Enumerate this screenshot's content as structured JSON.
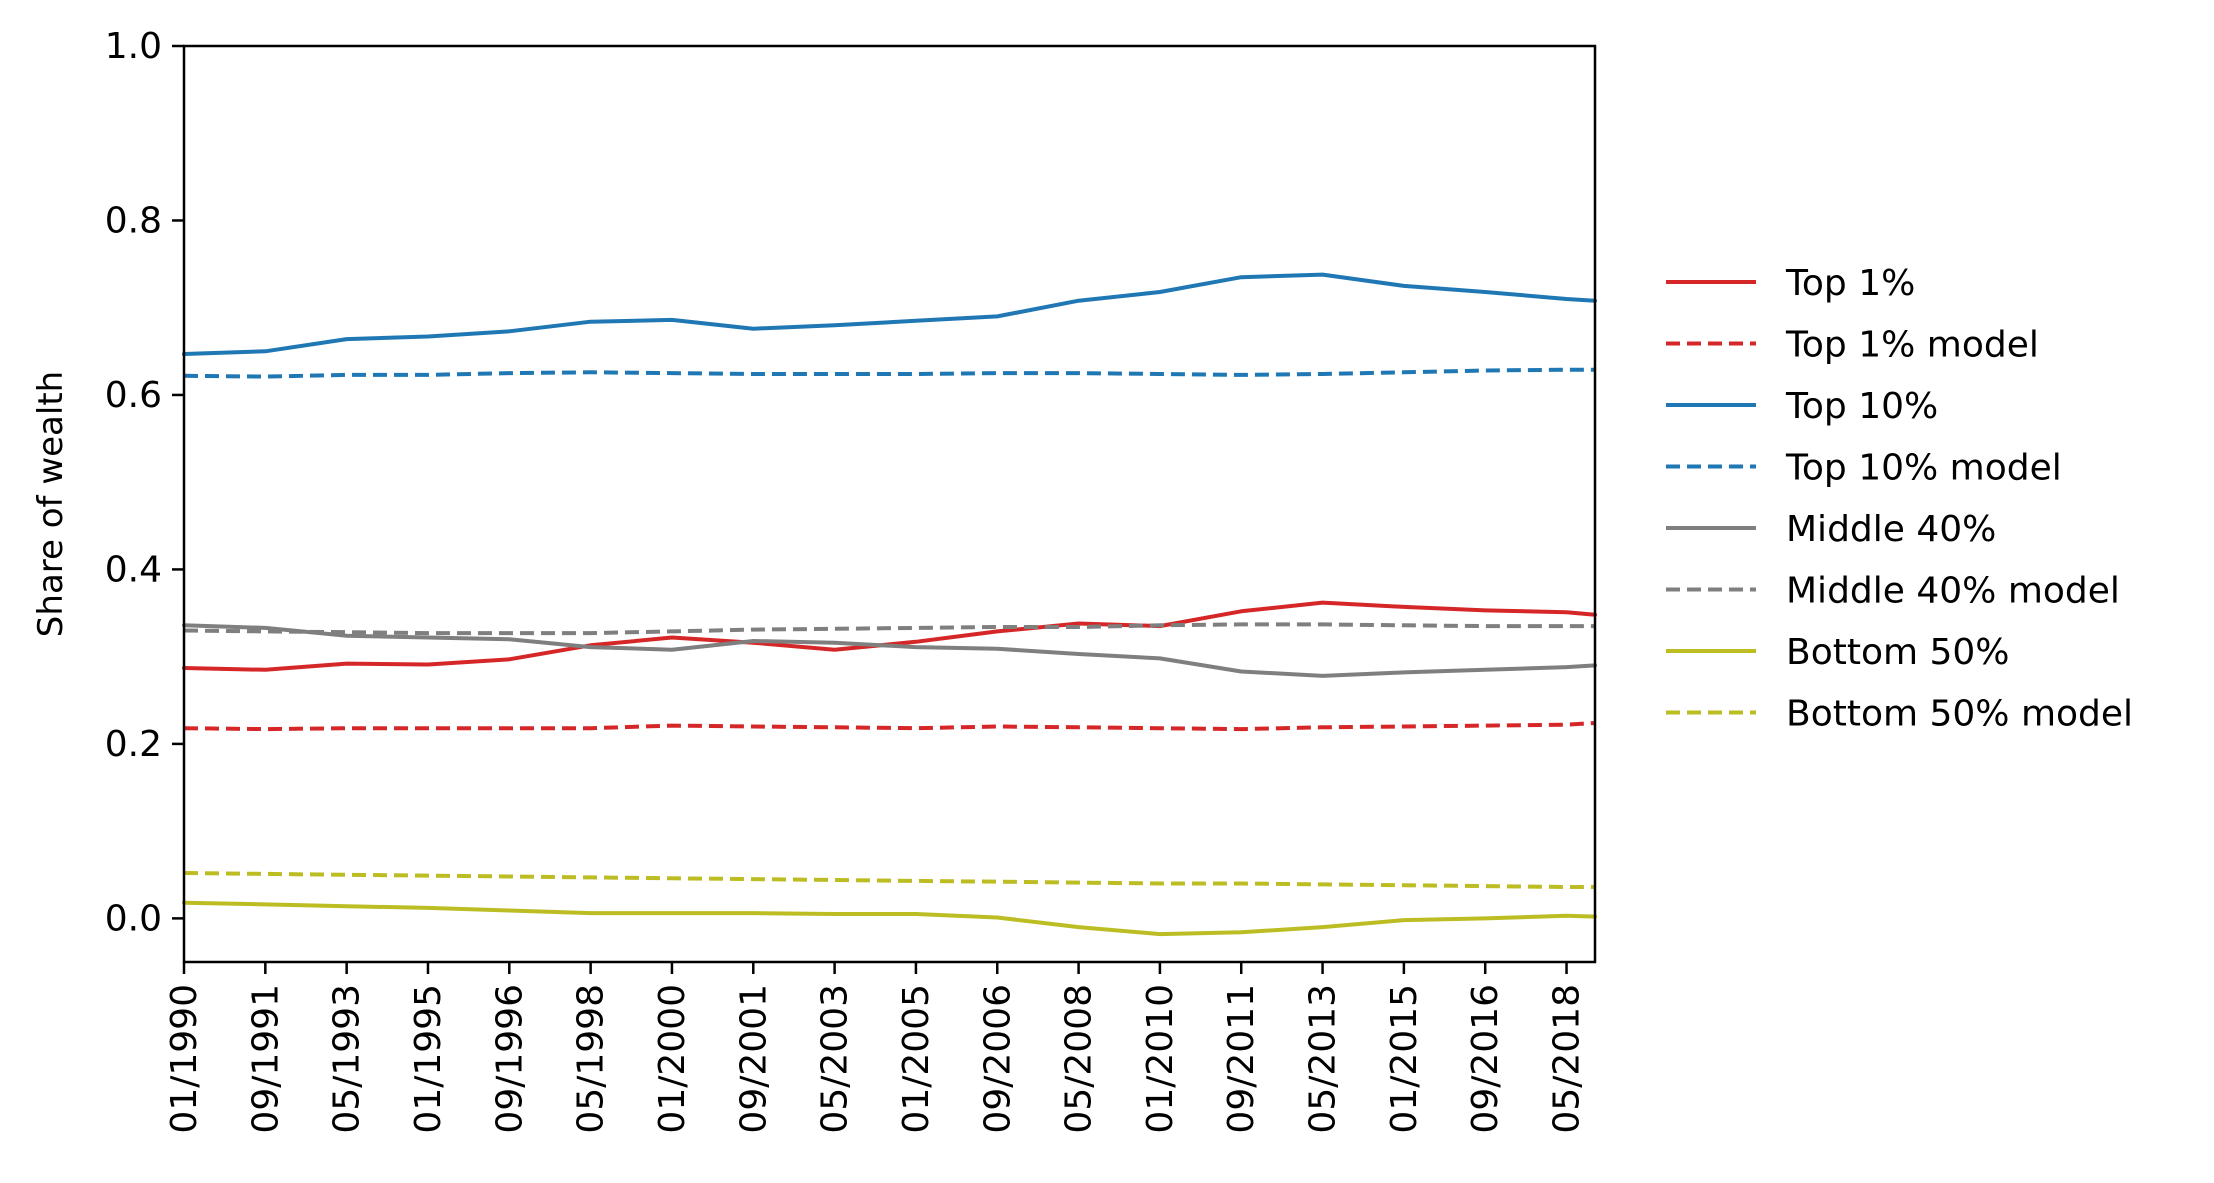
{
  "chart_data": {
    "type": "line",
    "ylabel": "Share of wealth",
    "xlabel": "",
    "ylim": [
      -0.05,
      1.0
    ],
    "xlim": [
      "01/1990",
      "12/2018"
    ],
    "yticks": [
      "0.0",
      "0.2",
      "0.4",
      "0.6",
      "0.8",
      "1.0"
    ],
    "xticks": [
      "01/1990",
      "09/1991",
      "05/1993",
      "01/1995",
      "09/1996",
      "05/1998",
      "01/2000",
      "09/2001",
      "05/2003",
      "01/2005",
      "09/2006",
      "05/2008",
      "01/2010",
      "09/2011",
      "05/2013",
      "01/2015",
      "09/2016",
      "05/2018"
    ],
    "grid": false,
    "legend_position": "right-outside",
    "x": [
      "01/1990",
      "09/1991",
      "05/1993",
      "01/1995",
      "09/1996",
      "05/1998",
      "01/2000",
      "09/2001",
      "05/2003",
      "01/2005",
      "09/2006",
      "05/2008",
      "01/2010",
      "09/2011",
      "05/2013",
      "01/2015",
      "09/2016",
      "05/2018",
      "12/2018"
    ],
    "series": [
      {
        "name": "Top 1%",
        "color": "#d62728",
        "dash": "solid",
        "values": [
          0.287,
          0.285,
          0.292,
          0.291,
          0.297,
          0.313,
          0.322,
          0.316,
          0.308,
          0.317,
          0.329,
          0.338,
          0.335,
          0.352,
          0.362,
          0.357,
          0.353,
          0.351,
          0.348
        ]
      },
      {
        "name": "Top 1% model",
        "color": "#d62728",
        "dash": "dashed",
        "values": [
          0.218,
          0.217,
          0.218,
          0.218,
          0.218,
          0.218,
          0.221,
          0.22,
          0.219,
          0.218,
          0.22,
          0.219,
          0.218,
          0.217,
          0.219,
          0.22,
          0.221,
          0.222,
          0.224
        ]
      },
      {
        "name": "Top 10%",
        "color": "#1f77b4",
        "dash": "solid",
        "values": [
          0.647,
          0.65,
          0.664,
          0.667,
          0.673,
          0.684,
          0.686,
          0.676,
          0.68,
          0.685,
          0.69,
          0.708,
          0.718,
          0.735,
          0.738,
          0.725,
          0.718,
          0.71,
          0.708
        ]
      },
      {
        "name": "Top 10% model",
        "color": "#1f77b4",
        "dash": "dashed",
        "values": [
          0.622,
          0.621,
          0.623,
          0.623,
          0.625,
          0.626,
          0.625,
          0.624,
          0.624,
          0.624,
          0.625,
          0.625,
          0.624,
          0.623,
          0.624,
          0.626,
          0.628,
          0.629,
          0.629
        ]
      },
      {
        "name": "Middle 40%",
        "color": "#7f7f7f",
        "dash": "solid",
        "values": [
          0.336,
          0.333,
          0.324,
          0.322,
          0.32,
          0.311,
          0.308,
          0.318,
          0.316,
          0.311,
          0.309,
          0.303,
          0.298,
          0.283,
          0.278,
          0.282,
          0.285,
          0.288,
          0.29
        ]
      },
      {
        "name": "Middle 40% model",
        "color": "#7f7f7f",
        "dash": "dashed",
        "values": [
          0.33,
          0.329,
          0.328,
          0.327,
          0.327,
          0.327,
          0.329,
          0.331,
          0.332,
          0.333,
          0.334,
          0.334,
          0.336,
          0.337,
          0.337,
          0.336,
          0.335,
          0.335,
          0.335
        ]
      },
      {
        "name": "Bottom 50%",
        "color": "#bcbd22",
        "dash": "solid",
        "values": [
          0.018,
          0.016,
          0.014,
          0.012,
          0.009,
          0.006,
          0.006,
          0.006,
          0.005,
          0.005,
          0.001,
          -0.01,
          -0.018,
          -0.016,
          -0.01,
          -0.002,
          0.0,
          0.003,
          0.002
        ]
      },
      {
        "name": "Bottom 50% model",
        "color": "#bcbd22",
        "dash": "dashed",
        "values": [
          0.052,
          0.051,
          0.05,
          0.049,
          0.048,
          0.047,
          0.046,
          0.045,
          0.044,
          0.043,
          0.042,
          0.041,
          0.04,
          0.04,
          0.039,
          0.038,
          0.037,
          0.036,
          0.036
        ]
      }
    ]
  }
}
